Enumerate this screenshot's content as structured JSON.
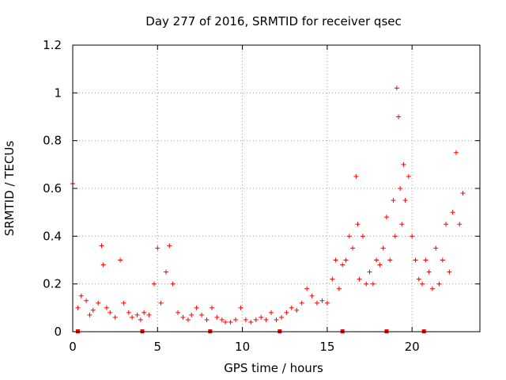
{
  "chart_data": {
    "type": "scatter",
    "title": "Day 277 of 2016, SRMTID for receiver qsec",
    "xlabel": "GPS time / hours",
    "ylabel": "SRMTID / TECUs",
    "xlim": [
      0,
      24
    ],
    "ylim": [
      0,
      1.2
    ],
    "x_ticks": [
      "0",
      "5",
      "10",
      "15",
      "20"
    ],
    "y_ticks": [
      "0",
      "0.2",
      "0.4",
      "0.6",
      "0.8",
      "1",
      "1.2"
    ],
    "grid": true,
    "marker": "plus",
    "series_color": "#ff0000",
    "gap_markers_x": [
      0.3,
      4.1,
      8.1,
      12.2,
      15.9,
      18.5,
      20.7
    ],
    "series": [
      {
        "name": "SRMTID",
        "x": [
          0.0,
          0.3,
          0.5,
          0.8,
          1.0,
          1.2,
          1.5,
          1.7,
          1.8,
          2.0,
          2.2,
          2.5,
          2.8,
          3.0,
          3.3,
          3.5,
          3.8,
          4.0,
          4.2,
          4.5,
          4.8,
          5.0,
          5.2,
          5.5,
          5.7,
          5.9,
          6.2,
          6.5,
          6.8,
          7.0,
          7.3,
          7.6,
          7.9,
          8.2,
          8.5,
          8.8,
          9.0,
          9.3,
          9.6,
          9.9,
          10.2,
          10.5,
          10.8,
          11.1,
          11.4,
          11.7,
          12.0,
          12.3,
          12.6,
          12.9,
          13.2,
          13.5,
          13.8,
          14.1,
          14.4,
          14.7,
          15.0,
          15.3,
          15.5,
          15.7,
          15.9,
          16.1,
          16.3,
          16.5,
          16.7,
          16.8,
          16.9,
          17.1,
          17.3,
          17.5,
          17.7,
          17.9,
          18.1,
          18.3,
          18.5,
          18.7,
          18.9,
          19.0,
          19.1,
          19.2,
          19.3,
          19.4,
          19.5,
          19.6,
          19.8,
          20.0,
          20.2,
          20.4,
          20.6,
          20.8,
          21.0,
          21.2,
          21.4,
          21.6,
          21.8,
          22.0,
          22.2,
          22.4,
          22.6,
          22.8,
          23.0
        ],
        "y": [
          0.62,
          0.1,
          0.15,
          0.13,
          0.07,
          0.09,
          0.12,
          0.36,
          0.28,
          0.1,
          0.08,
          0.06,
          0.3,
          0.12,
          0.08,
          0.06,
          0.07,
          0.05,
          0.08,
          0.07,
          0.2,
          0.35,
          0.12,
          0.25,
          0.36,
          0.2,
          0.08,
          0.06,
          0.05,
          0.07,
          0.1,
          0.07,
          0.05,
          0.1,
          0.06,
          0.05,
          0.04,
          0.04,
          0.05,
          0.1,
          0.05,
          0.04,
          0.05,
          0.06,
          0.05,
          0.08,
          0.05,
          0.06,
          0.08,
          0.1,
          0.09,
          0.12,
          0.18,
          0.15,
          0.12,
          0.13,
          0.12,
          0.22,
          0.3,
          0.18,
          0.28,
          0.3,
          0.4,
          0.35,
          0.65,
          0.45,
          0.22,
          0.4,
          0.2,
          0.25,
          0.2,
          0.3,
          0.28,
          0.35,
          0.48,
          0.3,
          0.55,
          0.4,
          1.02,
          0.9,
          0.6,
          0.45,
          0.7,
          0.55,
          0.65,
          0.4,
          0.3,
          0.22,
          0.2,
          0.3,
          0.25,
          0.18,
          0.35,
          0.2,
          0.3,
          0.45,
          0.25,
          0.5,
          0.75,
          0.45,
          0.58
        ]
      }
    ]
  }
}
